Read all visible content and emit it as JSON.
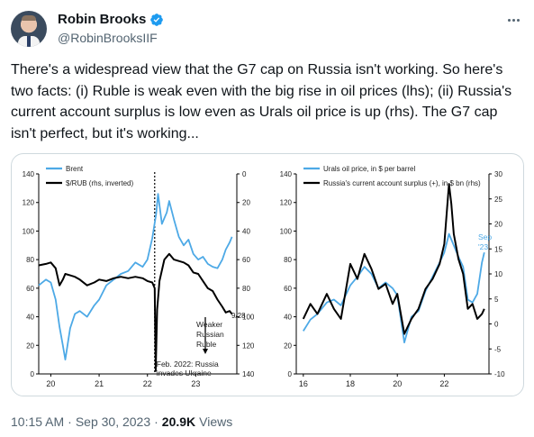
{
  "author": {
    "name": "Robin Brooks",
    "handle": "@RobinBrooksIIF",
    "verified": true
  },
  "icons": {
    "avatar": "avatar-photo",
    "verified": "verified-badge-icon",
    "more": "more-options-icon"
  },
  "colors": {
    "brent": "#4da9e6",
    "black_series": "#000000",
    "verified": "#1d9bf0"
  },
  "tweet_text": "There's a widespread view that the G7 cap on Russia isn't working. So here's two facts: (i) Ruble is weak even with the big rise in oil prices (lhs); (ii) Russia's current account surplus is low even as Urals oil price is up (rhs). The G7 cap isn't perfect, but it's working...",
  "meta": {
    "time": "10:15 AM",
    "dot1": "·",
    "date": "Sep 30, 2023",
    "dot2": "·",
    "views_count": "20.9K",
    "views_label": "Views"
  },
  "chart_data": [
    {
      "type": "line",
      "legend": [
        "Brent",
        "$/RUB (rhs, inverted)"
      ],
      "x_ticks": [
        "20",
        "21",
        "22",
        "23"
      ],
      "y_left_ticks": [
        "0",
        "20",
        "40",
        "60",
        "80",
        "100",
        "120",
        "140"
      ],
      "y_left_lim": [
        0,
        140
      ],
      "y_right_ticks": [
        "0",
        "20",
        "40",
        "60",
        "80",
        "100",
        "120",
        "140"
      ],
      "y_right_lim": [
        0,
        140
      ],
      "y_right_inverted": true,
      "annotations": {
        "end_label": "9/28",
        "arrow_text": [
          "Weaker",
          "Russian",
          "Ruble"
        ],
        "event": [
          "Feb. 2022: Russia",
          "invades Ukraine"
        ]
      },
      "series": [
        {
          "name": "Brent",
          "x": [
            2019.75,
            2019.9,
            2020.0,
            2020.1,
            2020.18,
            2020.25,
            2020.3,
            2020.4,
            2020.5,
            2020.6,
            2020.75,
            2020.9,
            2021.0,
            2021.15,
            2021.3,
            2021.45,
            2021.6,
            2021.75,
            2021.9,
            2022.0,
            2022.1,
            2022.18,
            2022.22,
            2022.3,
            2022.4,
            2022.45,
            2022.55,
            2022.65,
            2022.75,
            2022.85,
            2022.95,
            2023.05,
            2023.15,
            2023.25,
            2023.35,
            2023.45,
            2023.55,
            2023.62,
            2023.7,
            2023.75
          ],
          "values": [
            62,
            66,
            64,
            52,
            33,
            20,
            10,
            32,
            42,
            44,
            40,
            48,
            52,
            62,
            66,
            70,
            72,
            78,
            75,
            80,
            95,
            112,
            126,
            105,
            113,
            121,
            108,
            96,
            90,
            94,
            84,
            80,
            82,
            77,
            75,
            74,
            80,
            87,
            92,
            96
          ]
        },
        {
          "name": "$/RUB (rhs, inverted)",
          "x": [
            2019.75,
            2019.9,
            2020.0,
            2020.1,
            2020.18,
            2020.25,
            2020.3,
            2020.4,
            2020.5,
            2020.6,
            2020.75,
            2020.9,
            2021.0,
            2021.15,
            2021.3,
            2021.45,
            2021.6,
            2021.75,
            2021.9,
            2022.0,
            2022.1,
            2022.15,
            2022.17,
            2022.2,
            2022.25,
            2022.35,
            2022.45,
            2022.55,
            2022.65,
            2022.75,
            2022.85,
            2022.95,
            2023.05,
            2023.15,
            2023.25,
            2023.35,
            2023.45,
            2023.55,
            2023.62,
            2023.7,
            2023.75
          ],
          "values": [
            64,
            63,
            62,
            66,
            78,
            74,
            70,
            71,
            72,
            74,
            78,
            76,
            74,
            75,
            73,
            72,
            73,
            72,
            73,
            75,
            76,
            80,
            138,
            95,
            75,
            60,
            56,
            60,
            61,
            62,
            64,
            69,
            70,
            75,
            80,
            82,
            88,
            93,
            97,
            96,
            98
          ]
        }
      ]
    },
    {
      "type": "line",
      "legend": [
        "Urals oil price, in $ per barrel",
        "Russia's current account surplus (+), in $ bn (rhs)"
      ],
      "x_ticks": [
        "16",
        "18",
        "20",
        "22"
      ],
      "y_left_ticks": [
        "0",
        "20",
        "40",
        "60",
        "80",
        "100",
        "120",
        "140"
      ],
      "y_left_lim": [
        0,
        140
      ],
      "y_right_ticks": [
        "-10",
        "-5",
        "0",
        "5",
        "10",
        "15",
        "20",
        "25",
        "30"
      ],
      "y_right_lim": [
        -10,
        30
      ],
      "annotations": {
        "end_label": [
          "Sep",
          "'23"
        ]
      },
      "series": [
        {
          "name": "Urals oil price, in $ per barrel",
          "x": [
            2016.0,
            2016.3,
            2016.6,
            2017.0,
            2017.3,
            2017.6,
            2018.0,
            2018.3,
            2018.6,
            2018.9,
            2019.2,
            2019.5,
            2019.8,
            2020.0,
            2020.3,
            2020.6,
            2020.9,
            2021.2,
            2021.5,
            2021.8,
            2022.0,
            2022.2,
            2022.4,
            2022.6,
            2022.8,
            2023.0,
            2023.2,
            2023.4,
            2023.6,
            2023.7
          ],
          "values": [
            30,
            38,
            42,
            50,
            52,
            48,
            62,
            68,
            75,
            70,
            60,
            64,
            60,
            55,
            22,
            40,
            44,
            58,
            68,
            78,
            85,
            98,
            90,
            82,
            75,
            52,
            50,
            56,
            78,
            85
          ]
        },
        {
          "name": "Russia's current account surplus (+), in $ bn (rhs)",
          "x": [
            2016.0,
            2016.3,
            2016.6,
            2017.0,
            2017.3,
            2017.6,
            2018.0,
            2018.3,
            2018.6,
            2018.9,
            2019.2,
            2019.5,
            2019.8,
            2020.0,
            2020.3,
            2020.6,
            2020.9,
            2021.2,
            2021.5,
            2021.8,
            2022.0,
            2022.2,
            2022.3,
            2022.4,
            2022.6,
            2022.8,
            2023.0,
            2023.2,
            2023.4,
            2023.6,
            2023.7
          ],
          "values": [
            1,
            4,
            2,
            6,
            3,
            1,
            12,
            9,
            14,
            11,
            7,
            8,
            4,
            6,
            -2,
            1,
            3,
            7,
            9,
            12,
            16,
            28,
            24,
            18,
            13,
            10,
            3,
            4,
            1,
            2,
            3
          ]
        }
      ]
    }
  ]
}
